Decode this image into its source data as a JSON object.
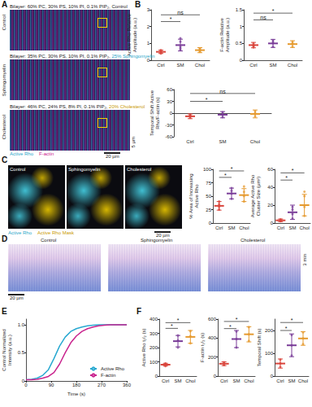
{
  "panel_letters": [
    "A",
    "B",
    "C",
    "D",
    "E",
    "F"
  ],
  "images": {
    "A": {
      "rows": [
        {
          "label": "Control",
          "caption": "Bilayer: 60% PC, 30% PS, 10% PI, 0.1% PIP₂, ",
          "highlight": "Control"
        },
        {
          "label": "Sphingomyelin",
          "caption": "Bilayer: 35% PC, 30% PS, 10% PI, 0.1% PIP₂, ",
          "highlight": "25% Sphingomyelin"
        },
        {
          "label": "Cholesterol",
          "caption": "Bilayer: 46% PC, 24% PS, 8% PI, 0.1% PIP₂, ",
          "highlight": "20% Cholesterol"
        }
      ],
      "channels": [
        "Active Rho",
        "F-actin"
      ],
      "scale": "20 µm",
      "inset_scale": "5 µm"
    },
    "C": {
      "panels": [
        "Control",
        "Sphingomyelin",
        "Cholesterol"
      ],
      "channels": [
        "Active Rho",
        "Active Rho Mask"
      ],
      "scale": "20 µm"
    },
    "D": {
      "panels": [
        "Control",
        "Sphingomyelin",
        "Cholesterol"
      ],
      "scale": "20 µm",
      "time_scale": "3 min"
    }
  },
  "chart_data": [
    {
      "type": "scatter",
      "ylabel": "Active Rho Relative Amplitude (a.u.)",
      "categories": [
        "Ctrl",
        "SM",
        "Chol"
      ],
      "colors": [
        "#d9453c",
        "#7a3d98",
        "#e59a2f"
      ],
      "ylim": [
        0,
        3
      ],
      "yticks": [
        0,
        1,
        2,
        3
      ],
      "grid": false,
      "values": [
        0.5,
        0.9,
        0.6
      ],
      "errors": [
        0.1,
        0.35,
        0.15
      ],
      "points": [
        [
          0.4,
          0.5,
          0.55,
          0.6,
          0.45
        ],
        [
          0.6,
          0.8,
          1.1,
          1.3,
          0.7
        ],
        [
          0.5,
          0.55,
          0.7,
          0.65
        ]
      ],
      "annotations": [
        {
          "text": "*",
          "from": 0,
          "to": 1,
          "y": 2.3
        },
        {
          "text": "ns",
          "from": 0,
          "to": 2,
          "y": 2.7
        }
      ]
    },
    {
      "type": "scatter",
      "ylabel": "F-actin Relative Amplitude (a.u.)",
      "categories": [
        "Ctrl",
        "SM",
        "Chol"
      ],
      "colors": [
        "#d9453c",
        "#7a3d98",
        "#e59a2f"
      ],
      "ylim": [
        0,
        1.5
      ],
      "yticks": [
        0,
        0.5,
        1,
        1.5
      ],
      "grid": false,
      "values": [
        0.45,
        0.5,
        0.48
      ],
      "errors": [
        0.08,
        0.12,
        0.1
      ],
      "points": [
        [
          0.38,
          0.45,
          0.5,
          0.42
        ],
        [
          0.4,
          0.5,
          0.6,
          0.55
        ],
        [
          0.4,
          0.48,
          0.55,
          0.5
        ]
      ],
      "annotations": [
        {
          "text": "ns",
          "from": 0,
          "to": 1,
          "y": 1.2
        },
        {
          "text": "*",
          "from": 0,
          "to": 2,
          "y": 1.4
        }
      ]
    },
    {
      "type": "scatter",
      "ylabel": "Temporal Shift Active Rho/F-actin (s)",
      "categories": [
        "Ctrl",
        "SM",
        "Chol"
      ],
      "colors": [
        "#d9453c",
        "#7a3d98",
        "#e59a2f"
      ],
      "ylim": [
        -60,
        60
      ],
      "yticks": [
        -60,
        -30,
        0,
        30,
        60
      ],
      "grid": false,
      "values": [
        -8,
        -4,
        -2
      ],
      "errors": [
        6,
        8,
        10
      ],
      "points": [
        [
          -12,
          -8,
          -5,
          -6
        ],
        [
          -10,
          -4,
          2,
          -3
        ],
        [
          -8,
          -2,
          5,
          0
        ]
      ],
      "annotations": [
        {
          "text": "*",
          "from": 0,
          "to": 1,
          "y": 30
        },
        {
          "text": "ns",
          "from": 0,
          "to": 2,
          "y": 50
        }
      ]
    },
    {
      "type": "scatter",
      "ylabel": "% Area of Increasing Active Rho",
      "categories": [
        "Ctrl",
        "SM",
        "Chol"
      ],
      "colors": [
        "#d9453c",
        "#7a3d98",
        "#e59a2f"
      ],
      "ylim": [
        0,
        100
      ],
      "yticks": [
        0,
        25,
        50,
        75,
        100
      ],
      "grid": false,
      "values": [
        32,
        55,
        52
      ],
      "errors": [
        8,
        10,
        12
      ],
      "points": [
        [
          25,
          30,
          35,
          40
        ],
        [
          45,
          55,
          60,
          65
        ],
        [
          40,
          50,
          58,
          68
        ]
      ],
      "annotations": [
        {
          "text": "*",
          "from": 0,
          "to": 1,
          "y": 85
        },
        {
          "text": "*",
          "from": 0,
          "to": 2,
          "y": 97
        }
      ]
    },
    {
      "type": "scatter",
      "ylabel": "Average Active Rho Cluster Size (µm²)",
      "categories": [
        "Ctrl",
        "SM",
        "Chol"
      ],
      "colors": [
        "#d9453c",
        "#7a3d98",
        "#e59a2f"
      ],
      "ylim": [
        0,
        60
      ],
      "yticks": [
        0,
        20,
        40,
        60
      ],
      "grid": false,
      "values": [
        3,
        12,
        20
      ],
      "errors": [
        1.5,
        8,
        12
      ],
      "points": [
        [
          2,
          3,
          4,
          3
        ],
        [
          5,
          10,
          18,
          15
        ],
        [
          8,
          18,
          30,
          35
        ]
      ],
      "annotations": [
        {
          "text": "*",
          "from": 0,
          "to": 1,
          "y": 48
        },
        {
          "text": "*",
          "from": 0,
          "to": 2,
          "y": 56
        }
      ]
    },
    {
      "type": "line",
      "xlabel": "Time (s)",
      "ylabel": "Control Normalized Intensity (a.u.)",
      "x": [
        0,
        20,
        40,
        60,
        80,
        100,
        120,
        140,
        160,
        180,
        200,
        220,
        240,
        260,
        280,
        300,
        320,
        340,
        360
      ],
      "xlim": [
        0,
        360
      ],
      "xticks": [
        0,
        90,
        180,
        270,
        360
      ],
      "ylim": [
        0,
        1.1
      ],
      "yticks": [
        0,
        0.5,
        {
          "value": 1,
          "label": "1.0"
        }
      ],
      "grid": false,
      "legend": "lower right",
      "series": [
        {
          "name": "Active Rho",
          "color": "#29a9d1",
          "values": [
            0.02,
            0.03,
            0.05,
            0.1,
            0.2,
            0.4,
            0.62,
            0.78,
            0.88,
            0.93,
            0.96,
            0.98,
            0.99,
            1.0,
            1.0,
            1.0,
            1.0,
            1.0,
            1.0
          ]
        },
        {
          "name": "F-actin",
          "color": "#c9248e",
          "values": [
            0.02,
            0.02,
            0.03,
            0.05,
            0.08,
            0.15,
            0.3,
            0.5,
            0.68,
            0.8,
            0.88,
            0.93,
            0.96,
            0.98,
            0.99,
            1.0,
            1.0,
            1.0,
            1.0
          ]
        }
      ]
    },
    {
      "type": "scatter",
      "ylabel": "Active Rho t₁/₂ (s)",
      "categories": [
        "Ctrl",
        "SM",
        "Chol"
      ],
      "colors": [
        "#d9453c",
        "#7a3d98",
        "#e59a2f"
      ],
      "ylim": [
        0,
        400
      ],
      "yticks": [
        0,
        100,
        200,
        300,
        400
      ],
      "grid": false,
      "values": [
        80,
        245,
        275
      ],
      "errors": [
        10,
        40,
        45
      ],
      "points": [
        [
          70,
          85,
          88
        ],
        [
          200,
          250,
          285
        ],
        [
          230,
          280,
          315
        ]
      ],
      "annotations": [
        {
          "text": "*",
          "from": 0,
          "to": 1,
          "y": 335
        },
        {
          "text": "*",
          "from": 0,
          "to": 2,
          "y": 375
        }
      ]
    },
    {
      "type": "scatter",
      "ylabel": "F-actin t₁/₂ (s)",
      "categories": [
        "Ctrl",
        "SM",
        "Chol"
      ],
      "colors": [
        "#d9453c",
        "#7a3d98",
        "#e59a2f"
      ],
      "ylim": [
        0,
        600
      ],
      "yticks": [
        0,
        200,
        400,
        600
      ],
      "grid": false,
      "values": [
        130,
        390,
        440
      ],
      "errors": [
        20,
        90,
        80
      ],
      "points": [
        [
          115,
          130,
          145
        ],
        [
          300,
          390,
          470
        ],
        [
          370,
          440,
          515
        ]
      ],
      "annotations": [
        {
          "text": "*",
          "from": 0,
          "to": 1,
          "y": 500
        },
        {
          "text": "*",
          "from": 0,
          "to": 2,
          "y": 575
        }
      ]
    },
    {
      "type": "scatter",
      "ylabel": "Temporal Shift (s)",
      "categories": [
        "Ctrl",
        "SM",
        "Chol"
      ],
      "colors": [
        "#d9453c",
        "#7a3d98",
        "#e59a2f"
      ],
      "ylim": [
        0,
        250
      ],
      "yticks": [
        0,
        100,
        200
      ],
      "grid": false,
      "values": [
        55,
        135,
        165
      ],
      "errors": [
        20,
        50,
        30
      ],
      "points": [
        [
          40,
          55,
          72
        ],
        [
          90,
          135,
          180
        ],
        [
          140,
          165,
          192
        ]
      ],
      "annotations": [
        {
          "text": "*",
          "from": 0,
          "to": 1,
          "y": 200
        },
        {
          "text": "*",
          "from": 0,
          "to": 2,
          "y": 235
        }
      ]
    }
  ]
}
